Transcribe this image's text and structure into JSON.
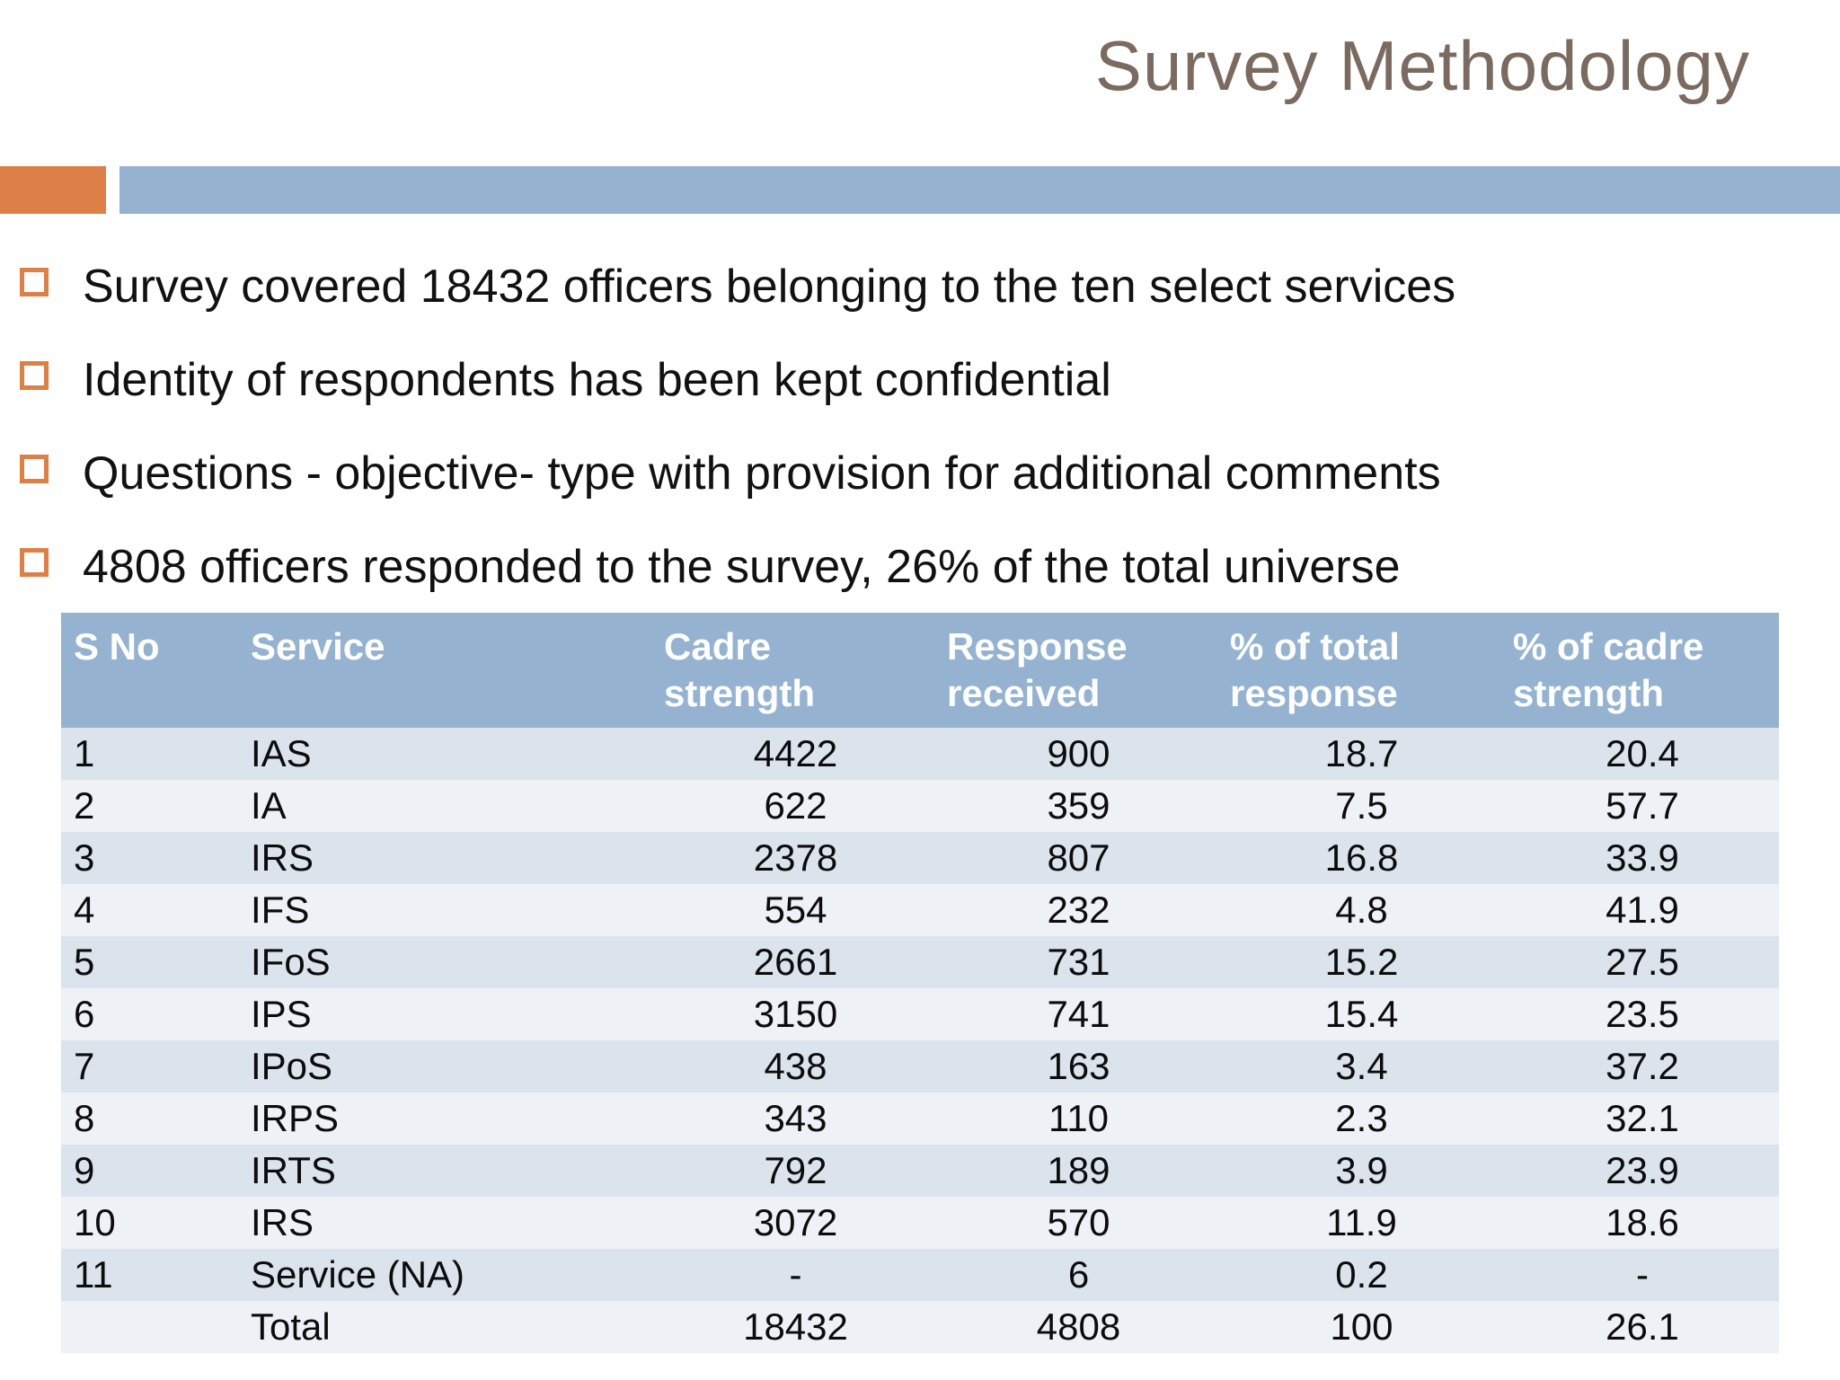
{
  "title": "Survey Methodology",
  "bullets": [
    "Survey covered 18432 officers belonging to the ten select services",
    "Identity of respondents has been kept confidential",
    "Questions - objective- type with provision for additional comments",
    "4808 officers responded to the survey, 26% of the total universe"
  ],
  "table": {
    "headers": [
      "S No",
      "Service",
      "Cadre strength",
      "Response received",
      "% of total response",
      "% of cadre strength"
    ],
    "rows": [
      [
        "1",
        "IAS",
        "4422",
        "900",
        "18.7",
        "20.4"
      ],
      [
        "2",
        "IA",
        "622",
        "359",
        "7.5",
        "57.7"
      ],
      [
        "3",
        "IRS",
        "2378",
        "807",
        "16.8",
        "33.9"
      ],
      [
        "4",
        "IFS",
        "554",
        "232",
        "4.8",
        "41.9"
      ],
      [
        "5",
        "IFoS",
        "2661",
        "731",
        "15.2",
        "27.5"
      ],
      [
        "6",
        "IPS",
        "3150",
        "741",
        "15.4",
        "23.5"
      ],
      [
        "7",
        "IPoS",
        "438",
        "163",
        "3.4",
        "37.2"
      ],
      [
        "8",
        "IRPS",
        "343",
        "110",
        "2.3",
        "32.1"
      ],
      [
        "9",
        "IRTS",
        "792",
        "189",
        "3.9",
        "23.9"
      ],
      [
        "10",
        "IRS",
        "3072",
        "570",
        "11.9",
        "18.6"
      ],
      [
        "11",
        "Service (NA)",
        "-",
        "6",
        "0.2",
        "-"
      ],
      [
        "",
        "Total",
        "18432",
        "4808",
        "100",
        "26.1"
      ]
    ]
  },
  "colors": {
    "accent_orange": "#DD8047",
    "accent_blue": "#95B3D0",
    "table_header_bg": "#95B3D0",
    "table_row_dark": "#DBE4ED",
    "table_row_light": "#EEF2F7",
    "title_text": "#7A6A5F",
    "body_text": "#111111"
  }
}
